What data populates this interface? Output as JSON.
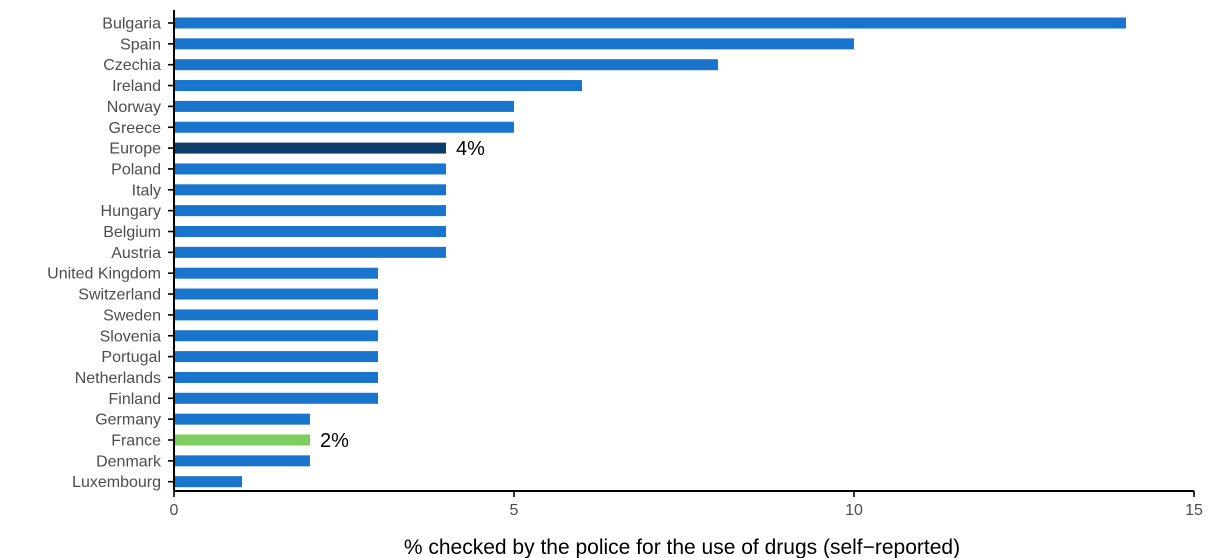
{
  "chart_data": {
    "type": "bar",
    "orientation": "horizontal",
    "title": "",
    "xlabel": "% checked by the police for the use of drugs (self−reported)",
    "ylabel": "",
    "xlim": [
      0,
      15
    ],
    "xticks": [
      0,
      5,
      10,
      15
    ],
    "grid": false,
    "categories": [
      "Bulgaria",
      "Spain",
      "Czechia",
      "Ireland",
      "Norway",
      "Greece",
      "Europe",
      "Poland",
      "Italy",
      "Hungary",
      "Belgium",
      "Austria",
      "United Kingdom",
      "Switzerland",
      "Sweden",
      "Slovenia",
      "Portugal",
      "Netherlands",
      "Finland",
      "Germany",
      "France",
      "Denmark",
      "Luxembourg"
    ],
    "values": [
      14,
      10,
      8,
      6,
      5,
      5,
      4,
      4,
      4,
      4,
      4,
      4,
      3,
      3,
      3,
      3,
      3,
      3,
      3,
      2,
      2,
      2,
      1
    ],
    "colors": {
      "default": "#1874cd",
      "highlight_europe": "#0d3d6b",
      "highlight_france": "#7ccd5e",
      "axis": "#000000"
    },
    "highlights": {
      "Europe": "highlight_europe",
      "France": "highlight_france"
    },
    "data_labels": [
      {
        "category": "Europe",
        "text": "4%"
      },
      {
        "category": "France",
        "text": "2%"
      }
    ]
  }
}
